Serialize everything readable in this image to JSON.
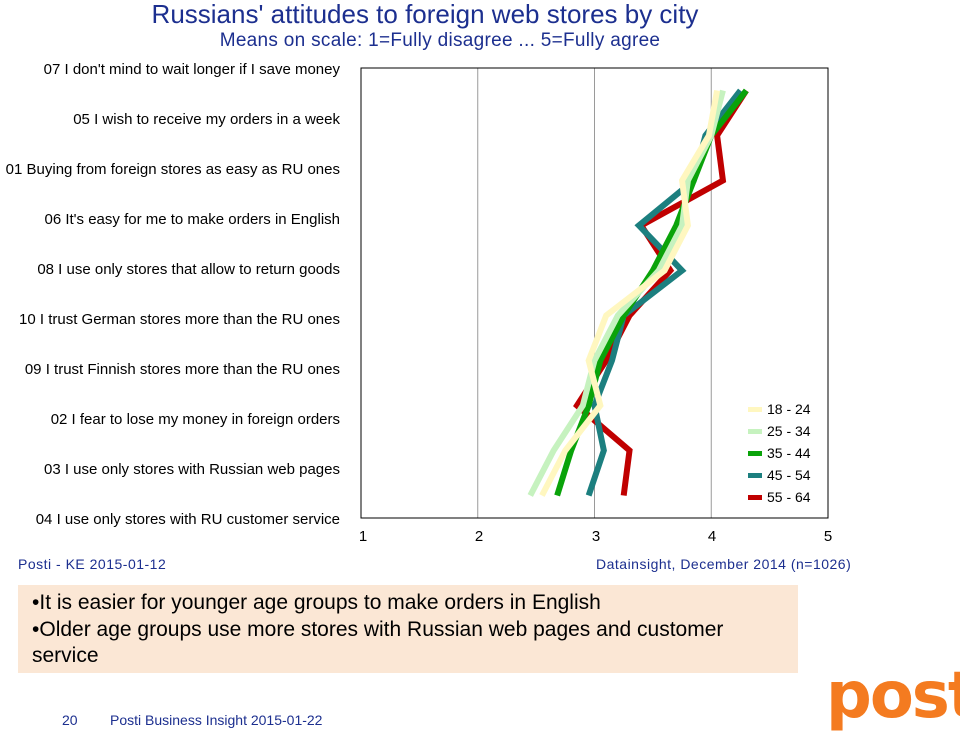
{
  "header": {
    "title": "Russians' attitudes to foreign web stores by city",
    "subtitle": "Means on scale: 1=Fully disagree ... 5=Fully agree"
  },
  "chart_data": {
    "type": "line",
    "orientation": "horizontal",
    "categories": [
      "07 I don't mind to wait longer if I save money",
      "05 I wish to receive my orders in a week",
      "01 Buying from foreign stores as easy as RU ones",
      "06 It's easy for me to make orders in English",
      "08 I use only stores that allow to return goods",
      "10 I trust German stores more than the RU ones",
      "09 I trust Finnish stores more than the RU ones",
      "02 I fear to lose my money in foreign orders",
      "03 I use only stores with Russian web pages",
      "04 I use only stores with RU customer service"
    ],
    "xlim": [
      1,
      5
    ],
    "xticks": [
      "1",
      "2",
      "3",
      "4",
      "5"
    ],
    "grid": true,
    "legend_position": "bottom-right",
    "series": [
      {
        "name": "18 - 24",
        "color": "#fff7c0",
        "values": [
          4.05,
          3.98,
          3.75,
          3.8,
          3.6,
          3.1,
          2.95,
          3.05,
          2.75,
          2.55
        ]
      },
      {
        "name": "25 - 34",
        "color": "#c6f2bf",
        "values": [
          4.1,
          4.0,
          3.8,
          3.75,
          3.55,
          3.2,
          3.0,
          2.9,
          2.65,
          2.45
        ]
      },
      {
        "name": "35 - 44",
        "color": "#0aa30a",
        "values": [
          4.3,
          4.0,
          3.85,
          3.7,
          3.5,
          3.25,
          3.05,
          2.95,
          2.8,
          2.68
        ]
      },
      {
        "name": "45 - 54",
        "color": "#1c7f7f",
        "values": [
          4.25,
          3.95,
          3.85,
          3.38,
          3.75,
          3.25,
          3.15,
          3.0,
          3.08,
          2.95
        ]
      },
      {
        "name": "55 - 64",
        "color": "#c00000",
        "values": [
          4.3,
          4.05,
          4.1,
          3.4,
          3.65,
          3.3,
          3.1,
          2.85,
          3.3,
          3.25
        ]
      }
    ]
  },
  "footer": {
    "left": "Posti - KE 2015-01-12",
    "right": "Datainsight, December 2014 (n=1026)"
  },
  "notes": {
    "bullet1": "It is easier for younger age groups to make orders in English",
    "bullet2": "Older age groups use more stores with Russian web pages and customer service"
  },
  "page": {
    "number": "20",
    "label": "Posti Business Insight 2015-01-22"
  },
  "logo": {
    "text": "posti",
    "color": "#f47b20"
  }
}
